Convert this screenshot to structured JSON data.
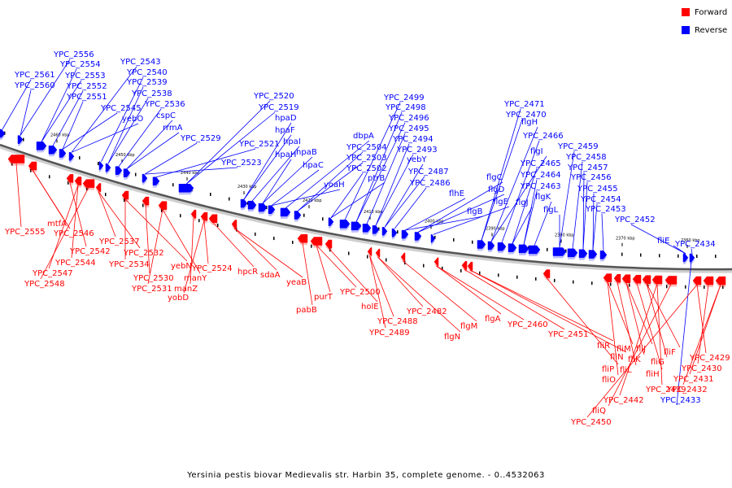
{
  "legend": {
    "forward_label": "Forward",
    "reverse_label": "Reverse",
    "forward_color": "#ff0000",
    "reverse_color": "#0000ff"
  },
  "caption": "Yersinia pestis biovar Medievalis str. Harbin 35, complete genome. - 0..4532063",
  "axis": {
    "ticks": [
      "2460 kbp",
      "2450 kbp",
      "2440 kbp",
      "2430 kbp",
      "2420 kbp",
      "2410 kbp",
      "2400 kbp",
      "2390 kbp",
      "2380 kbp",
      "2370 kbp",
      "2360 kbp"
    ]
  },
  "reverse_labels": [
    "YPC_2561",
    "YPC_2560",
    "YPC_2556",
    "YPC_2554",
    "YPC_2553",
    "YPC_2552",
    "YPC_2551",
    "YPC_2545",
    "yebO",
    "YPC_2543",
    "YPC_2540",
    "YPC_2539",
    "YPC_2538",
    "YPC_2536",
    "cspC",
    "rrmA",
    "YPC_2529",
    "YPC_2523",
    "YPC_2521",
    "YPC_2520",
    "YPC_2519",
    "hpaD",
    "hpaF",
    "hpaI",
    "hpaH",
    "hpaB",
    "hpaC",
    "yoaH",
    "dbpA",
    "YPC_2504",
    "YPC_2503",
    "YPC_2502",
    "ptrB",
    "YPC_2499",
    "YPC_2498",
    "YPC_2496",
    "YPC_2495",
    "YPC_2494",
    "YPC_2493",
    "yebY",
    "YPC_2487",
    "YPC_2486",
    "flhE",
    "flgB",
    "flgC",
    "flgD",
    "flgE",
    "YPC_2471",
    "YPC_2470",
    "flgH",
    "flgI",
    "YPC_2466",
    "flgJ",
    "YPC_2465",
    "YPC_2464",
    "YPC_2463",
    "flgK",
    "flgL",
    "YPC_2459",
    "YPC_2458",
    "YPC_2457",
    "YPC_2456",
    "YPC_2455",
    "YPC_2454",
    "YPC_2453",
    "YPC_2452",
    "fliE",
    "YPC_2434",
    "YPC_2433"
  ],
  "forward_labels": [
    "YPC_2555",
    "mtfA",
    "YPC_2546",
    "YPC_2542",
    "YPC_2544",
    "YPC_2547",
    "YPC_2548",
    "YPC_2537",
    "YPC_2532",
    "YPC_2534",
    "yebN",
    "YPC_2530",
    "YPC_2531",
    "manY",
    "manZ",
    "yobD",
    "YPC_2524",
    "hpcR",
    "sdaA",
    "yeaB",
    "pabB",
    "purT",
    "YPC_2500",
    "holE",
    "YPC_2488",
    "YPC_2489",
    "YPC_2482",
    "flgN",
    "flgM",
    "flgA",
    "YPC_2460",
    "YPC_2451",
    "fliR",
    "fliN",
    "fliP",
    "fliO",
    "fliM",
    "fliL",
    "fliK",
    "fliJ",
    "fliH",
    "fliG",
    "fliF",
    "YPC_2439",
    "YPC_2442",
    "fliQ",
    "YPC_2450",
    "YPC_2429",
    "YPC_2430",
    "YPC_2431",
    "YPC_2432"
  ]
}
